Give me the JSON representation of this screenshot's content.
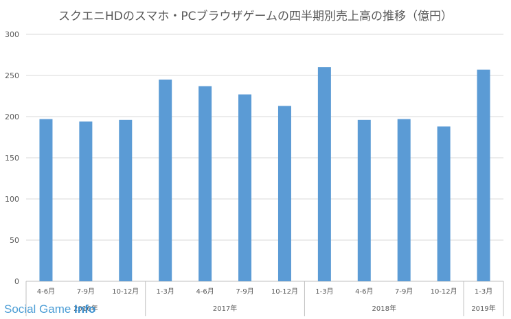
{
  "chart_data": {
    "type": "bar",
    "title": "スクエニHDのスマホ・PCブラウザゲームの四半期別売上高の推移（億円）",
    "categories": [
      "4-6月",
      "7-9月",
      "10-12月",
      "1-3月",
      "4-6月",
      "7-9月",
      "10-12月",
      "1-3月",
      "4-6月",
      "7-9月",
      "10-12月",
      "1-3月"
    ],
    "year_groups": [
      {
        "label": "2016年",
        "count": 3
      },
      {
        "label": "2017年",
        "count": 4
      },
      {
        "label": "2018年",
        "count": 4
      },
      {
        "label": "2019年",
        "count": 1
      }
    ],
    "values": [
      197,
      194,
      196,
      245,
      237,
      227,
      213,
      260,
      196,
      197,
      188,
      257
    ],
    "ylim": [
      0,
      300
    ],
    "yticks": [
      0,
      50,
      100,
      150,
      200,
      250,
      300
    ],
    "xlabel": "",
    "ylabel": "",
    "grid": true,
    "bar_color": "#5b9bd5",
    "grid_color": "#d9d9d9"
  },
  "watermark": {
    "text_a": "Social Game ",
    "text_b": "Info",
    "color": "#4d9ed6"
  }
}
